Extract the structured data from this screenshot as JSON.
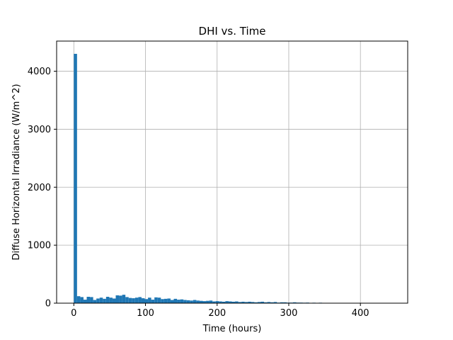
{
  "chart_data": {
    "type": "bar",
    "title": "DHI vs. Time",
    "xlabel": "Time (hours)",
    "ylabel": "Diffuse Horizontal Irradiance (W/m^2)",
    "xlim": [
      -24,
      466
    ],
    "ylim": [
      0,
      4520
    ],
    "xticks": [
      0,
      100,
      200,
      300,
      400
    ],
    "yticks": [
      0,
      1000,
      2000,
      3000,
      4000
    ],
    "grid": true,
    "bar_color": "#1f77b4",
    "bin_width": 4.5,
    "bins_start": [
      0,
      4.5,
      9,
      13.5,
      18,
      22.5,
      27,
      31.5,
      36,
      40.5,
      45,
      49.5,
      54,
      58.5,
      63,
      67.5,
      72,
      76.5,
      81,
      85.5,
      90,
      94.5,
      99,
      103.5,
      108,
      112.5,
      117,
      121.5,
      126,
      130.5,
      135,
      139.5,
      144,
      148.5,
      153,
      157.5,
      162,
      166.5,
      171,
      175.5,
      180,
      184.5,
      189,
      193.5,
      198,
      202.5,
      207,
      211.5,
      216,
      220.5,
      225,
      229.5,
      234,
      238.5,
      243,
      247.5,
      252,
      256.5,
      261,
      265.5,
      270,
      274.5,
      279,
      283.5,
      288,
      292.5,
      297,
      301.5,
      306,
      310.5,
      315,
      319.5,
      324,
      328.5,
      333,
      337.5,
      342,
      346.5,
      351,
      355.5,
      360,
      364.5,
      369,
      373.5,
      378,
      382.5,
      387,
      391.5,
      396,
      400.5,
      405,
      409.5,
      414,
      418.5,
      423,
      427.5,
      432,
      436.5,
      441
    ],
    "values": [
      4300,
      120,
      105,
      60,
      110,
      105,
      55,
      80,
      95,
      75,
      110,
      95,
      80,
      135,
      130,
      145,
      105,
      90,
      85,
      95,
      105,
      85,
      70,
      95,
      60,
      100,
      95,
      70,
      75,
      80,
      55,
      75,
      60,
      65,
      55,
      50,
      45,
      55,
      45,
      40,
      35,
      40,
      45,
      30,
      35,
      30,
      25,
      35,
      30,
      25,
      30,
      20,
      25,
      20,
      25,
      20,
      15,
      20,
      25,
      15,
      20,
      15,
      20,
      10,
      15,
      15,
      10,
      10,
      15,
      10,
      10,
      8,
      10,
      6,
      8,
      6,
      8,
      5,
      6,
      4,
      5,
      3,
      4,
      3,
      3,
      3,
      2,
      2,
      2,
      2,
      1,
      2,
      1,
      1,
      1,
      1,
      1,
      1,
      1
    ]
  }
}
